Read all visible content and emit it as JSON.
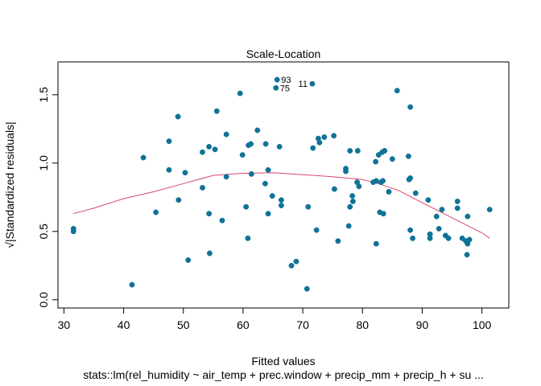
{
  "chart_data": {
    "type": "scatter",
    "title": "Scale-Location",
    "xlabel": "Fitted values",
    "ylabel": "√|Standardized residuals|",
    "subtitle": "stats::lm(rel_humidity ~ air_temp + prec.window + precip_mm + precip_h + su ...",
    "xlim": [
      29,
      104.5
    ],
    "ylim": [
      -0.06,
      1.74
    ],
    "x_ticks": [
      30,
      40,
      50,
      60,
      70,
      80,
      90,
      100
    ],
    "y_ticks": [
      0.0,
      0.5,
      1.0,
      1.5
    ],
    "grid": false,
    "point_color": "#0f7396",
    "line_color": "#d9476a",
    "points": [
      [
        31.6,
        0.5
      ],
      [
        31.6,
        0.52
      ],
      [
        41.4,
        0.11
      ],
      [
        43.3,
        1.04
      ],
      [
        45.4,
        0.64
      ],
      [
        47.6,
        1.16
      ],
      [
        47.6,
        0.95
      ],
      [
        49.1,
        1.34
      ],
      [
        49.2,
        0.73
      ],
      [
        50.3,
        0.93
      ],
      [
        50.8,
        0.29
      ],
      [
        53.2,
        1.08
      ],
      [
        53.2,
        0.82
      ],
      [
        54.3,
        1.12
      ],
      [
        54.3,
        0.63
      ],
      [
        54.4,
        0.34
      ],
      [
        55.3,
        1.1
      ],
      [
        55.6,
        1.38
      ],
      [
        56.5,
        0.58
      ],
      [
        57.2,
        1.21
      ],
      [
        57.2,
        0.9
      ],
      [
        59.5,
        1.51
      ],
      [
        59.9,
        1.06
      ],
      [
        60.5,
        0.68
      ],
      [
        60.8,
        0.45
      ],
      [
        60.9,
        1.13
      ],
      [
        61.3,
        1.14
      ],
      [
        61.4,
        0.92
      ],
      [
        62.4,
        1.24
      ],
      [
        63.7,
        0.85
      ],
      [
        63.8,
        1.14
      ],
      [
        64.2,
        0.95
      ],
      [
        64.2,
        0.63
      ],
      [
        64.9,
        0.76
      ],
      [
        65.5,
        1.55
      ],
      [
        65.7,
        1.61
      ],
      [
        66.1,
        1.12
      ],
      [
        66.4,
        0.73
      ],
      [
        66.4,
        0.69
      ],
      [
        68.1,
        0.25
      ],
      [
        68.9,
        0.28
      ],
      [
        70.7,
        0.08
      ],
      [
        70.9,
        0.68
      ],
      [
        71.6,
        1.58
      ],
      [
        71.7,
        1.11
      ],
      [
        72.3,
        0.51
      ],
      [
        72.6,
        1.18
      ],
      [
        72.8,
        1.15
      ],
      [
        73.6,
        1.19
      ],
      [
        75.2,
        1.2
      ],
      [
        75.3,
        0.81
      ],
      [
        75.9,
        0.43
      ],
      [
        77.2,
        0.94
      ],
      [
        77.2,
        0.96
      ],
      [
        77.7,
        0.54
      ],
      [
        77.9,
        1.09
      ],
      [
        77.9,
        0.68
      ],
      [
        78.3,
        0.76
      ],
      [
        78.4,
        0.72
      ],
      [
        79.1,
        0.86
      ],
      [
        79.2,
        1.09
      ],
      [
        79.4,
        0.83
      ],
      [
        81.8,
        0.86
      ],
      [
        82.2,
        1.01
      ],
      [
        82.3,
        0.87
      ],
      [
        82.3,
        0.41
      ],
      [
        82.7,
        1.06
      ],
      [
        82.9,
        0.64
      ],
      [
        83.1,
        0.86
      ],
      [
        83.3,
        1.08
      ],
      [
        83.4,
        0.87
      ],
      [
        83.5,
        0.63
      ],
      [
        83.7,
        1.09
      ],
      [
        84.4,
        0.79
      ],
      [
        85.0,
        1.03
      ],
      [
        85.8,
        1.53
      ],
      [
        87.7,
        1.05
      ],
      [
        87.8,
        0.88
      ],
      [
        88.0,
        0.89
      ],
      [
        88.0,
        1.41
      ],
      [
        88.0,
        0.51
      ],
      [
        88.4,
        0.45
      ],
      [
        88.9,
        0.78
      ],
      [
        91.0,
        0.73
      ],
      [
        91.3,
        0.48
      ],
      [
        91.3,
        0.45
      ],
      [
        92.4,
        0.61
      ],
      [
        92.8,
        0.52
      ],
      [
        93.3,
        0.66
      ],
      [
        93.9,
        0.47
      ],
      [
        94.4,
        0.45
      ],
      [
        95.9,
        0.72
      ],
      [
        95.9,
        0.67
      ],
      [
        96.7,
        0.45
      ],
      [
        97.3,
        0.43
      ],
      [
        97.5,
        0.33
      ],
      [
        97.6,
        0.61
      ],
      [
        97.6,
        0.41
      ],
      [
        97.9,
        0.44
      ],
      [
        101.3,
        0.66
      ]
    ],
    "smooth_line": [
      [
        31.6,
        0.63
      ],
      [
        35,
        0.67
      ],
      [
        40,
        0.74
      ],
      [
        45,
        0.79
      ],
      [
        50,
        0.85
      ],
      [
        55,
        0.91
      ],
      [
        60,
        0.925
      ],
      [
        65,
        0.93
      ],
      [
        70,
        0.915
      ],
      [
        75,
        0.9
      ],
      [
        80,
        0.88
      ],
      [
        83,
        0.845
      ],
      [
        86,
        0.8
      ],
      [
        90,
        0.71
      ],
      [
        95,
        0.6
      ],
      [
        100,
        0.49
      ],
      [
        101.3,
        0.45
      ]
    ],
    "annotations": [
      {
        "label": "93",
        "x": 65.7,
        "y": 1.61,
        "side": "right"
      },
      {
        "label": "75",
        "x": 65.5,
        "y": 1.55,
        "side": "right"
      },
      {
        "label": "11",
        "x": 71.6,
        "y": 1.58,
        "side": "left"
      }
    ]
  }
}
